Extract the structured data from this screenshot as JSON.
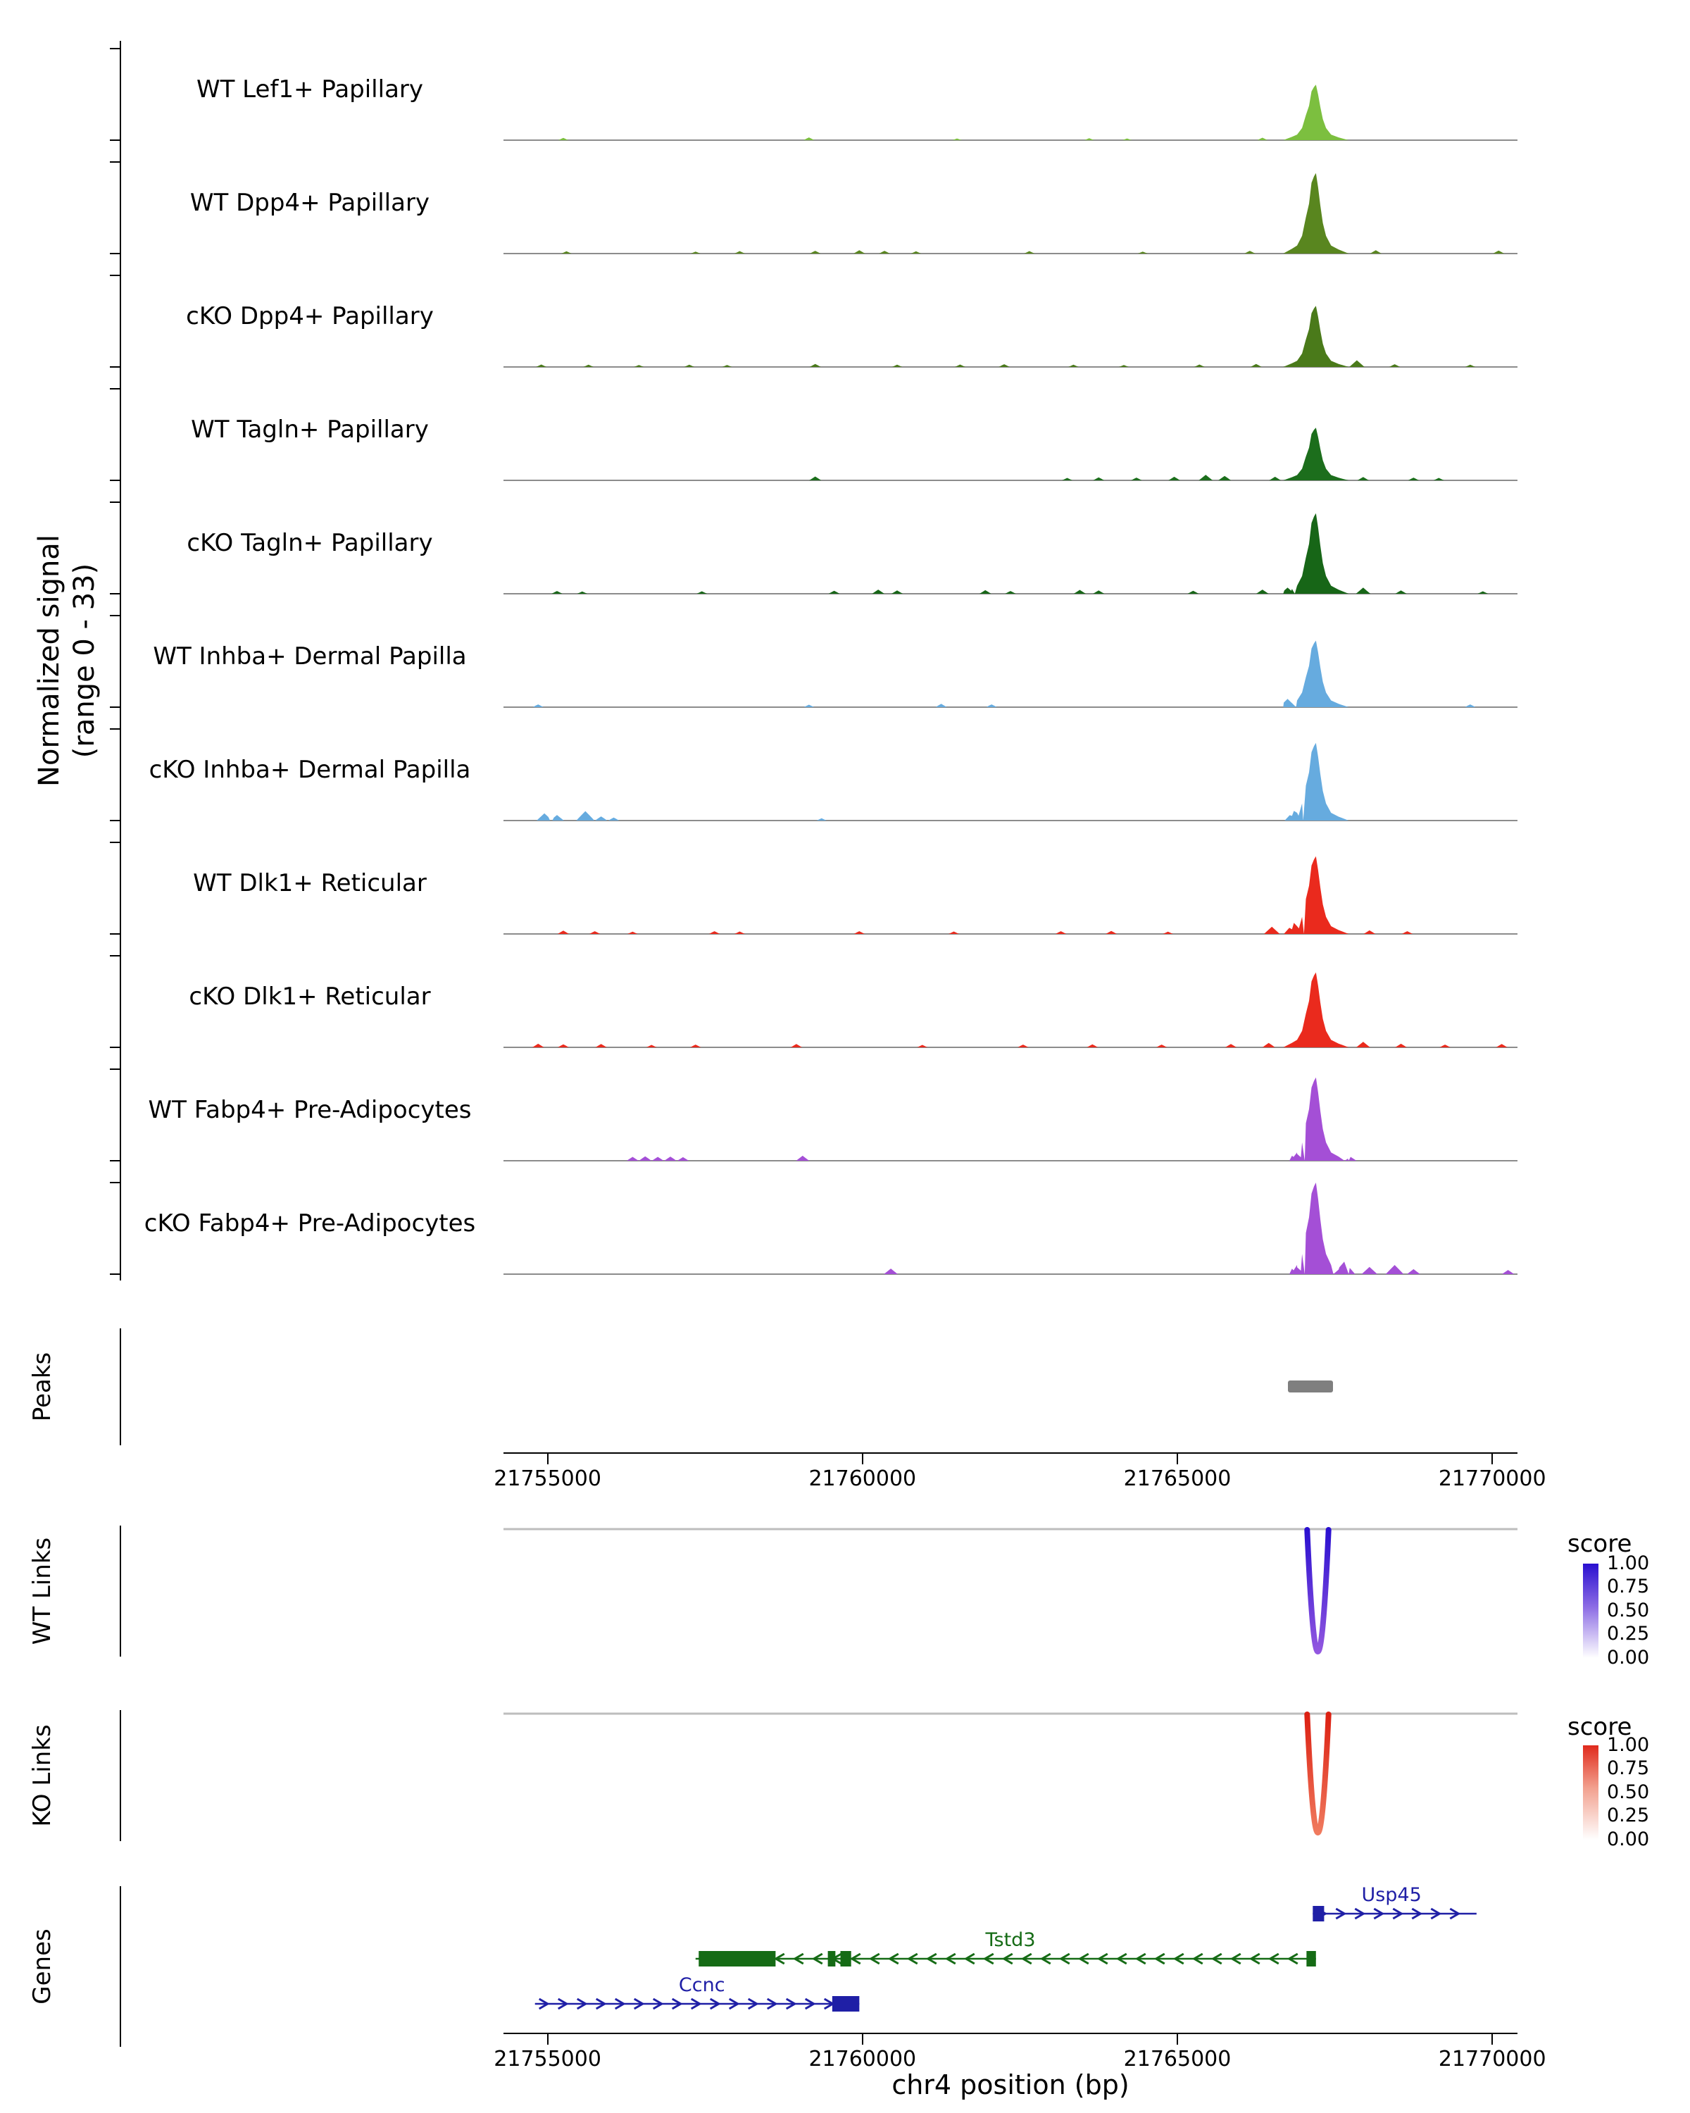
{
  "chart_data": {
    "type": "area",
    "description": "Genome browser coverage plot with peaks, chromatin links and gene models",
    "x_axis": {
      "label": "chr4 position (bp)",
      "domain": [
        21754300,
        21770400
      ],
      "ticks": [
        21755000,
        21760000,
        21765000,
        21770000
      ],
      "tick_labels": [
        "21755000",
        "21760000",
        "21765000",
        "21770000"
      ]
    },
    "signal": {
      "axis_label_line1": "Normalized signal",
      "axis_label_line2": "(range 0 - 33)",
      "ymax": 33,
      "peak_center": 21767200,
      "tracks": [
        {
          "label": "WT Lef1+ Papillary",
          "color": "#7cbf3f",
          "peak": {
            "center": 21767200,
            "height": 20
          },
          "bumps": [
            [
              21755250,
              0.8
            ],
            [
              21759150,
              1.0
            ],
            [
              21761500,
              0.6
            ],
            [
              21763600,
              0.7
            ],
            [
              21764200,
              0.6
            ],
            [
              21766350,
              0.9
            ]
          ]
        },
        {
          "label": "WT Dpp4+ Papillary",
          "color": "#59861f",
          "peak": {
            "center": 21767200,
            "height": 29
          },
          "bumps": [
            [
              21755300,
              0.8
            ],
            [
              21757350,
              0.7
            ],
            [
              21758050,
              0.9
            ],
            [
              21759250,
              1.0
            ],
            [
              21759950,
              1.2
            ],
            [
              21760350,
              1.0
            ],
            [
              21760850,
              0.8
            ],
            [
              21762650,
              0.9
            ],
            [
              21764450,
              0.7
            ],
            [
              21766150,
              1.0
            ],
            [
              21768150,
              1.2
            ],
            [
              21770100,
              1.1
            ]
          ]
        },
        {
          "label": "cKO Dpp4+ Papillary",
          "color": "#4a7a1a",
          "peak": {
            "center": 21767200,
            "height": 22
          },
          "bumps": [
            [
              21754900,
              0.9
            ],
            [
              21755650,
              0.8
            ],
            [
              21756450,
              0.7
            ],
            [
              21757250,
              0.8
            ],
            [
              21757850,
              0.7
            ],
            [
              21759250,
              1.1
            ],
            [
              21760550,
              0.8
            ],
            [
              21761550,
              0.9
            ],
            [
              21762250,
              1.0
            ],
            [
              21763350,
              0.8
            ],
            [
              21764150,
              0.7
            ],
            [
              21765350,
              0.9
            ],
            [
              21766250,
              1.1
            ],
            [
              21767850,
              2.4
            ],
            [
              21768450,
              1.0
            ],
            [
              21769650,
              0.8
            ]
          ]
        },
        {
          "label": "WT Tagln+ Papillary",
          "color": "#1c6e1c",
          "peak": {
            "center": 21767200,
            "height": 19
          },
          "bumps": [
            [
              21759250,
              1.4
            ],
            [
              21763250,
              0.9
            ],
            [
              21763750,
              1.1
            ],
            [
              21764350,
              1.0
            ],
            [
              21764950,
              1.3
            ],
            [
              21765450,
              2.0
            ],
            [
              21765750,
              1.6
            ],
            [
              21766550,
              1.3
            ],
            [
              21767950,
              1.2
            ],
            [
              21768750,
              1.0
            ],
            [
              21769150,
              0.9
            ]
          ]
        },
        {
          "label": "cKO Tagln+ Papillary",
          "color": "#176617",
          "peak": {
            "center": 21767200,
            "height": 29
          },
          "bumps": [
            [
              21755150,
              1.0
            ],
            [
              21755550,
              0.8
            ],
            [
              21757450,
              0.9
            ],
            [
              21759550,
              1.1
            ],
            [
              21760250,
              1.5
            ],
            [
              21760550,
              1.2
            ],
            [
              21761950,
              1.3
            ],
            [
              21762350,
              1.0
            ],
            [
              21763450,
              1.4
            ],
            [
              21763750,
              1.2
            ],
            [
              21765250,
              1.1
            ],
            [
              21766350,
              1.5
            ],
            [
              21766750,
              2.2
            ],
            [
              21767950,
              2.2
            ],
            [
              21768550,
              1.2
            ],
            [
              21769850,
              0.9
            ]
          ]
        },
        {
          "label": "WT Inhba+ Dermal Papilla",
          "color": "#66abdf",
          "peak": {
            "center": 21767200,
            "height": 24
          },
          "bumps": [
            [
              21754850,
              1.0
            ],
            [
              21759150,
              0.9
            ],
            [
              21761250,
              1.2
            ],
            [
              21762050,
              1.0
            ],
            [
              21766750,
              3.0
            ],
            [
              21769650,
              1.0
            ]
          ]
        },
        {
          "label": "cKO Inhba+ Dermal Papilla",
          "color": "#66abdf",
          "peak": {
            "center": 21767200,
            "height": 28
          },
          "bumps": [
            [
              21754950,
              2.6
            ],
            [
              21755150,
              2.0
            ],
            [
              21755600,
              3.4
            ],
            [
              21755850,
              1.5
            ],
            [
              21756050,
              1.1
            ],
            [
              21759350,
              0.8
            ],
            [
              21766850,
              3.5
            ]
          ]
        },
        {
          "label": "WT Dlk1+ Reticular",
          "color": "#ea2a1d",
          "peak": {
            "center": 21767200,
            "height": 28
          },
          "bumps": [
            [
              21755250,
              1.2
            ],
            [
              21755750,
              1.0
            ],
            [
              21756350,
              0.8
            ],
            [
              21757650,
              1.0
            ],
            [
              21758050,
              0.9
            ],
            [
              21759950,
              1.0
            ],
            [
              21761450,
              0.9
            ],
            [
              21763150,
              1.0
            ],
            [
              21763950,
              1.1
            ],
            [
              21764850,
              0.8
            ],
            [
              21766500,
              2.6
            ],
            [
              21766850,
              4.0
            ],
            [
              21768050,
              1.3
            ],
            [
              21768650,
              1.0
            ]
          ]
        },
        {
          "label": "cKO Dlk1+ Reticular",
          "color": "#ea2a1d",
          "peak": {
            "center": 21767200,
            "height": 27
          },
          "bumps": [
            [
              21754850,
              1.3
            ],
            [
              21755250,
              1.1
            ],
            [
              21755850,
              1.2
            ],
            [
              21756650,
              0.9
            ],
            [
              21757350,
              1.0
            ],
            [
              21758950,
              1.2
            ],
            [
              21760950,
              0.9
            ],
            [
              21762550,
              1.0
            ],
            [
              21763650,
              1.1
            ],
            [
              21764750,
              1.0
            ],
            [
              21765850,
              1.2
            ],
            [
              21766450,
              1.6
            ],
            [
              21767950,
              2.0
            ],
            [
              21768550,
              1.3
            ],
            [
              21769250,
              1.0
            ],
            [
              21770150,
              1.2
            ]
          ]
        },
        {
          "label": "WT Fabp4+ Pre-Adipocytes",
          "color": "#a44fd6",
          "peak": {
            "center": 21767200,
            "height": 30
          },
          "bumps": [
            [
              21756350,
              1.4
            ],
            [
              21756550,
              1.6
            ],
            [
              21756750,
              1.4
            ],
            [
              21756950,
              1.5
            ],
            [
              21757150,
              1.3
            ],
            [
              21759050,
              1.8
            ],
            [
              21766900,
              2.5
            ],
            [
              21767750,
              1.4
            ]
          ]
        },
        {
          "label": "cKO Fabp4+ Pre-Adipocytes",
          "color": "#a44fd6",
          "peak": {
            "center": 21767200,
            "height": 33
          },
          "bumps": [
            [
              21760450,
              2.0
            ],
            [
              21766900,
              2.5
            ],
            [
              21767650,
              4.5
            ],
            [
              21768050,
              2.6
            ],
            [
              21768450,
              3.3
            ],
            [
              21768750,
              1.8
            ],
            [
              21770250,
              1.5
            ]
          ]
        }
      ]
    },
    "peaks": {
      "section_label": "Peaks",
      "color": "#7f7f7f",
      "intervals": [
        [
          21766760,
          21767470
        ]
      ]
    },
    "links_wt": {
      "section_label": "WT Links",
      "legend_title": "score",
      "legend_ticks": [
        "1.00",
        "0.75",
        "0.50",
        "0.25",
        "0.00"
      ],
      "legend_gradient": [
        "#2a10d0",
        "#8a6ae4",
        "#ffffff"
      ],
      "arc_gradient": [
        "#2a10d0",
        "#9257e0"
      ],
      "links": [
        {
          "start": 21767060,
          "end": 21767400,
          "score": 1.0
        }
      ]
    },
    "links_ko": {
      "section_label": "KO Links",
      "legend_title": "score",
      "legend_ticks": [
        "1.00",
        "0.75",
        "0.50",
        "0.25",
        "0.00"
      ],
      "legend_gradient": [
        "#e02a1c",
        "#f2a08e",
        "#ffffff"
      ],
      "arc_gradient": [
        "#dc2012",
        "#f07a5e"
      ],
      "links": [
        {
          "start": 21767060,
          "end": 21767400,
          "score": 1.0
        }
      ]
    },
    "genes": {
      "section_label": "Genes",
      "items": [
        {
          "name": "Usp45",
          "color": "#1f1fa6",
          "strand": "+",
          "start": 21767150,
          "end": 21769750,
          "row": 0,
          "exons": [
            [
              21767150,
              21767330
            ]
          ],
          "label_bp": 21768400
        },
        {
          "name": "Tstd3",
          "color": "#156b15",
          "strand": "-",
          "start": 21757350,
          "end": 21767200,
          "row": 1,
          "exons": [
            [
              21757400,
              21758620
            ],
            [
              21759450,
              21759570
            ],
            [
              21759650,
              21759820
            ],
            [
              21767050,
              21767200
            ]
          ],
          "label_bp": 21762350
        },
        {
          "name": "Ccnc",
          "color": "#1f1fa6",
          "strand": "+",
          "start": 21754800,
          "end": 21759950,
          "row": 2,
          "exons": [
            [
              21759520,
              21759950
            ]
          ],
          "label_bp": 21757450
        }
      ]
    }
  }
}
